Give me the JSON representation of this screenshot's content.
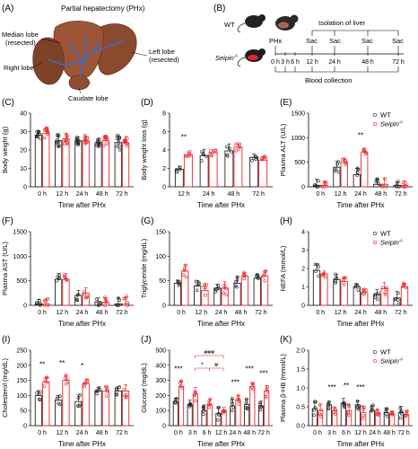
{
  "panel_a": {
    "letter": "(A)",
    "title": "Partial hepatectomy (PHx)",
    "labels": {
      "median_1": "Median lobe",
      "median_2": "(resected)",
      "left_1": "Left lobe",
      "left_2": "(resected)",
      "right": "Right lobe",
      "caudate": "Caudate lobe"
    }
  },
  "panel_b": {
    "letter": "(B)",
    "wt": "WT",
    "seipin": "Seipin",
    "sup": "-/-",
    "isolation": "Isolation of  liver",
    "phx": "PHx",
    "sac": "Sac",
    "ticks": [
      "0 h",
      "3 h",
      "6 h",
      "12 h",
      "24 h",
      "48 h",
      "72 h"
    ],
    "blood": "Blood collection"
  },
  "legend": {
    "wt": "WT",
    "seipin": "Seipin",
    "sup": "-/-"
  },
  "colors": {
    "wt": "#222222",
    "seipin": "#e8262b",
    "liver": "#8a4a2e",
    "vessel": "#2f6fd6"
  },
  "chart_data": [
    {
      "id": "C",
      "letter": "(C)",
      "type": "bar",
      "ylabel": "Body weight (g)",
      "xlabel": "Time after PHx",
      "ylim": [
        0,
        40
      ],
      "yticks": [
        0,
        10,
        20,
        30,
        40
      ],
      "categories": [
        "0 h",
        "12 h",
        "24 h",
        "48 h",
        "72 h"
      ],
      "series": [
        {
          "name": "WT",
          "values": [
            28,
            25,
            25,
            24,
            24
          ]
        },
        {
          "name": "Seipin-/-",
          "values": [
            29,
            26,
            25,
            25,
            24
          ]
        }
      ],
      "annotations": [],
      "legend": false
    },
    {
      "id": "D",
      "letter": "(D)",
      "type": "bar",
      "ylabel": "Body weight loss (g)",
      "xlabel": "Time after PHx",
      "ylim": [
        0,
        8
      ],
      "yticks": [
        0,
        2,
        4,
        6,
        8
      ],
      "categories": [
        "12 h",
        "24 h",
        "48 h",
        "72 h"
      ],
      "series": [
        {
          "name": "WT",
          "values": [
            1.9,
            3.4,
            3.9,
            3.2
          ]
        },
        {
          "name": "Seipin-/-",
          "values": [
            3.5,
            3.7,
            4.3,
            2.9
          ]
        }
      ],
      "annotations": [
        {
          "cat": 0,
          "text": "**"
        }
      ],
      "legend": false
    },
    {
      "id": "E",
      "letter": "(E)",
      "type": "bar",
      "ylabel": "Plasma ALT (U/L)",
      "xlabel": "Time after PHx",
      "ylim": [
        0,
        1500
      ],
      "yticks": [
        0,
        500,
        1000,
        1500
      ],
      "categories": [
        "0 h",
        "12 h",
        "24 h",
        "48 h",
        "72 h"
      ],
      "series": [
        {
          "name": "WT",
          "values": [
            30,
            400,
            250,
            50,
            30
          ]
        },
        {
          "name": "Seipin-/-",
          "values": [
            30,
            500,
            700,
            50,
            30
          ]
        }
      ],
      "annotations": [
        {
          "cat": 2,
          "text": "**"
        }
      ],
      "legend": true
    },
    {
      "id": "F",
      "letter": "(F)",
      "type": "bar",
      "ylabel": "Plasma AST (U/L)",
      "xlabel": "Time after PHx",
      "ylim": [
        0,
        1500
      ],
      "yticks": [
        0,
        500,
        1000,
        1500
      ],
      "categories": [
        "0 h",
        "12 h",
        "24 h",
        "48 h",
        "72 h"
      ],
      "series": [
        {
          "name": "WT",
          "values": [
            30,
            530,
            200,
            70,
            30
          ]
        },
        {
          "name": "Seipin-/-",
          "values": [
            30,
            530,
            250,
            60,
            30
          ]
        }
      ],
      "annotations": [],
      "legend": false
    },
    {
      "id": "G",
      "letter": "(G)",
      "type": "bar",
      "ylabel": "Triglyceride (mg/dL)",
      "xlabel": "Time after PHx",
      "ylim": [
        0,
        150
      ],
      "yticks": [
        0,
        50,
        100,
        150
      ],
      "categories": [
        "0 h",
        "12 h",
        "24 h",
        "48 h",
        "72 h"
      ],
      "series": [
        {
          "name": "WT",
          "values": [
            45,
            40,
            35,
            45,
            55
          ]
        },
        {
          "name": "Seipin-/-",
          "values": [
            70,
            30,
            35,
            60,
            60
          ]
        }
      ],
      "annotations": [],
      "legend": false
    },
    {
      "id": "H",
      "letter": "(H)",
      "type": "bar",
      "ylabel": "NEFA (mmol/L)",
      "xlabel": "Time after PHx",
      "ylim": [
        0,
        4
      ],
      "yticks": [
        0,
        1,
        2,
        3,
        4
      ],
      "categories": [
        "0 h",
        "12 h",
        "24 h",
        "48 h",
        "72 h"
      ],
      "series": [
        {
          "name": "WT",
          "values": [
            1.9,
            1.4,
            1.0,
            0.6,
            0.4
          ]
        },
        {
          "name": "Seipin-/-",
          "values": [
            1.7,
            1.3,
            0.7,
            0.9,
            1.0
          ]
        }
      ],
      "annotations": [],
      "legend": true
    },
    {
      "id": "I",
      "letter": "(I)",
      "type": "bar",
      "ylabel": "Cholesterol (mg/dL)",
      "xlabel": "Time after PHx",
      "ylim": [
        0,
        250
      ],
      "yticks": [
        0,
        50,
        100,
        150,
        200,
        250
      ],
      "categories": [
        "0 h",
        "12 h",
        "24 h",
        "48 h",
        "72 h"
      ],
      "series": [
        {
          "name": "WT",
          "values": [
            100,
            85,
            80,
            115,
            115
          ]
        },
        {
          "name": "Seipin-/-",
          "values": [
            145,
            150,
            140,
            115,
            115
          ]
        }
      ],
      "annotations": [
        {
          "cat": 0,
          "text": "**"
        },
        {
          "cat": 1,
          "text": "**"
        },
        {
          "cat": 2,
          "text": "*"
        }
      ],
      "legend": false
    },
    {
      "id": "J",
      "letter": "(J)",
      "type": "bar",
      "ylabel": "Glucose (mg/dL)",
      "xlabel": "Time after PHx",
      "ylim": [
        0,
        500
      ],
      "yticks": [
        0,
        100,
        200,
        300,
        400,
        500
      ],
      "categories": [
        "0 h",
        "3 h",
        "6 h",
        "12 h",
        "24 h",
        "48 h",
        "72 h"
      ],
      "series": [
        {
          "name": "WT",
          "values": [
            160,
            140,
            100,
            80,
            130,
            140,
            130
          ]
        },
        {
          "name": "Seipin-/-",
          "values": [
            260,
            210,
            140,
            100,
            170,
            260,
            230
          ]
        }
      ],
      "annotations": [
        {
          "cat": 0,
          "text": "***"
        },
        {
          "cat": 4,
          "text": "***"
        },
        {
          "cat": 5,
          "text": "***"
        },
        {
          "cat": 6,
          "text": "***"
        }
      ],
      "legend": false,
      "brackets": [
        {
          "from": 1,
          "to": 3,
          "level": 0,
          "text": "###"
        },
        {
          "from": 1,
          "to": 2,
          "level": 1,
          "text": "*"
        },
        {
          "from": 2,
          "to": 3,
          "level": 1,
          "text": "#"
        }
      ]
    },
    {
      "id": "K",
      "letter": "(K)",
      "type": "bar",
      "ylabel": "Plasma β-HB (mmol/L)",
      "xlabel": "Time after PHx",
      "ylim": [
        0,
        2.0
      ],
      "yticks": [
        0.0,
        0.5,
        1.0,
        1.5,
        2.0
      ],
      "categories": [
        "0 h",
        "3 h",
        "6 h",
        "12 h",
        "24 h",
        "48 h",
        "72 h"
      ],
      "series": [
        {
          "name": "WT",
          "values": [
            0.45,
            0.55,
            0.6,
            0.55,
            0.4,
            0.35,
            0.35
          ]
        },
        {
          "name": "Seipin-/-",
          "values": [
            0.4,
            0.4,
            0.4,
            0.35,
            0.35,
            0.3,
            0.3
          ]
        }
      ],
      "annotations": [
        {
          "cat": 1,
          "text": "***"
        },
        {
          "cat": 2,
          "text": "**"
        },
        {
          "cat": 3,
          "text": "***"
        }
      ],
      "legend": true
    }
  ]
}
